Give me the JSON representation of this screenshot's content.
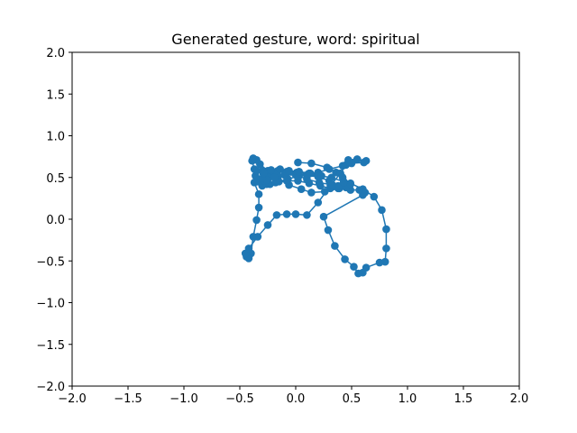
{
  "chart_data": {
    "type": "line",
    "title": "Generated gesture, word: spiritual",
    "xlabel": "",
    "ylabel": "",
    "xlim": [
      -2.0,
      2.0
    ],
    "ylim": [
      -2.0,
      2.0
    ],
    "x_ticks": [
      "−2.0",
      "−1.5",
      "−1.0",
      "−0.5",
      "0.0",
      "0.5",
      "1.0",
      "1.5",
      "2.0"
    ],
    "y_ticks": [
      "−2.0",
      "−1.5",
      "−1.0",
      "−0.5",
      "0.0",
      "0.5",
      "1.0",
      "1.5",
      "2.0"
    ],
    "grid": false,
    "legend": false,
    "marker": "circle",
    "color": "#1f77b4",
    "series": [
      {
        "x": [
          0.02,
          0.14,
          0.28,
          0.36,
          0.42,
          0.49,
          0.6,
          0.7,
          0.77,
          0.81,
          0.81,
          0.8,
          0.75,
          0.63,
          0.6,
          0.56,
          0.52,
          0.44,
          0.35,
          0.29,
          0.25,
          0.6,
          0.62,
          0.57,
          0.49,
          0.39,
          0.26,
          0.14,
          0.05,
          -0.06,
          -0.16,
          -0.25,
          -0.32,
          -0.35,
          -0.38,
          -0.39,
          -0.37,
          -0.37,
          -0.33,
          -0.33,
          -0.35,
          -0.38,
          -0.4,
          -0.42,
          -0.44,
          -0.45,
          -0.42,
          -0.34,
          -0.25,
          -0.17,
          -0.08,
          0.0,
          0.1,
          0.2,
          0.31,
          0.4,
          0.45,
          0.47,
          0.55,
          0.63,
          0.61,
          0.5,
          0.42,
          0.3,
          0.2,
          0.12,
          0.03,
          -0.07,
          -0.15,
          -0.23,
          -0.3,
          -0.34,
          -0.36,
          -0.35,
          -0.3,
          -0.23,
          -0.16,
          -0.08,
          0.01,
          0.11,
          0.21,
          0.32,
          0.43,
          0.45,
          0.38,
          0.31,
          0.22,
          0.12,
          0.02,
          -0.08,
          -0.18,
          -0.26,
          -0.28,
          -0.24,
          -0.17,
          -0.09,
          0.0,
          0.1,
          0.2,
          0.3,
          0.38,
          0.45,
          0.49,
          0.43,
          0.33,
          0.21,
          0.1,
          0.0,
          -0.1,
          -0.19,
          -0.26,
          -0.3,
          -0.29,
          -0.22,
          -0.14,
          -0.06,
          0.03,
          0.13,
          0.23
        ],
        "y": [
          0.68,
          0.67,
          0.62,
          0.56,
          0.5,
          0.43,
          0.36,
          0.27,
          0.11,
          -0.12,
          -0.35,
          -0.51,
          -0.52,
          -0.58,
          -0.64,
          -0.65,
          -0.57,
          -0.48,
          -0.32,
          -0.13,
          0.03,
          0.29,
          0.32,
          0.35,
          0.35,
          0.37,
          0.33,
          0.32,
          0.36,
          0.41,
          0.5,
          0.58,
          0.66,
          0.71,
          0.73,
          0.7,
          0.6,
          0.44,
          0.3,
          0.14,
          -0.01,
          -0.21,
          -0.41,
          -0.47,
          -0.45,
          -0.41,
          -0.35,
          -0.21,
          -0.07,
          0.05,
          0.06,
          0.06,
          0.05,
          0.2,
          0.4,
          0.55,
          0.65,
          0.71,
          0.72,
          0.7,
          0.68,
          0.67,
          0.64,
          0.6,
          0.56,
          0.55,
          0.52,
          0.48,
          0.45,
          0.42,
          0.4,
          0.45,
          0.52,
          0.58,
          0.58,
          0.55,
          0.58,
          0.57,
          0.56,
          0.54,
          0.52,
          0.5,
          0.45,
          0.4,
          0.37,
          0.37,
          0.4,
          0.43,
          0.46,
          0.46,
          0.44,
          0.42,
          0.46,
          0.5,
          0.53,
          0.55,
          0.54,
          0.52,
          0.51,
          0.46,
          0.4,
          0.38,
          0.42,
          0.44,
          0.41,
          0.44,
          0.48,
          0.53,
          0.53,
          0.5,
          0.47,
          0.49,
          0.55,
          0.59,
          0.6,
          0.58,
          0.57,
          0.55,
          0.52
        ]
      }
    ]
  }
}
